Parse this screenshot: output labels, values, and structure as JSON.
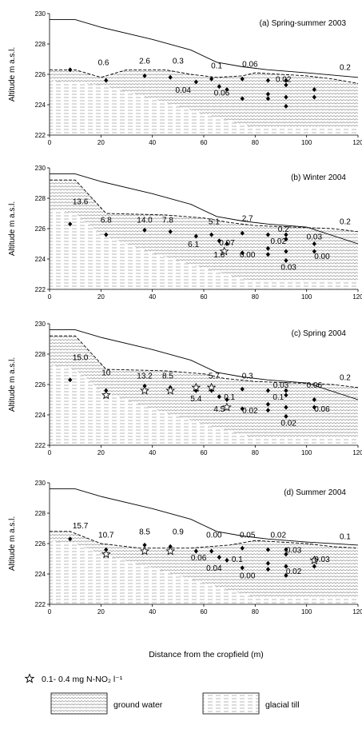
{
  "colors": {
    "line": "#000000",
    "ink": "#000000",
    "gw_stroke": "#8a8a8a",
    "till_stroke": "#9a9a9a"
  },
  "icons": {
    "star": "star-icon",
    "ground_water": "wavy-hatch-swatch",
    "glacial_till": "dashed-hatch-swatch"
  },
  "xaxis_label": "Distance from the cropfield (m)",
  "legend": {
    "star_label": "0.1- 0.4 mg N-NO₂ l⁻¹",
    "ground_water": "ground water",
    "glacial_till": "glacial till"
  },
  "chart_data": [
    {
      "type": "scatter",
      "title": "(a) Spring-summer 2003",
      "ylabel": "Altitude m a.s.l.",
      "xlim": [
        0,
        120
      ],
      "ylim": [
        222,
        230
      ],
      "xticks": [
        "0",
        "20",
        "40",
        "60",
        "80",
        "100",
        "120"
      ],
      "yticks": [
        "222",
        "224",
        "226",
        "228",
        "230"
      ],
      "surface": [
        [
          0,
          229.6
        ],
        [
          10,
          229.6
        ],
        [
          20,
          229.1
        ],
        [
          40,
          228.3
        ],
        [
          55,
          227.6
        ],
        [
          65,
          226.8
        ],
        [
          75,
          226.5
        ],
        [
          85,
          226.3
        ],
        [
          100,
          226.1
        ],
        [
          120,
          225.8
        ]
      ],
      "water_table": [
        [
          0,
          226.3
        ],
        [
          10,
          226.3
        ],
        [
          20,
          225.8
        ],
        [
          30,
          226.3
        ],
        [
          45,
          226.3
        ],
        [
          55,
          226.0
        ],
        [
          65,
          225.8
        ],
        [
          75,
          225.9
        ],
        [
          80,
          226.1
        ],
        [
          90,
          226.0
        ],
        [
          100,
          225.9
        ],
        [
          110,
          225.7
        ],
        [
          120,
          225.4
        ]
      ],
      "till_top": [
        [
          0,
          225.6
        ],
        [
          20,
          225.3
        ],
        [
          40,
          224.4
        ],
        [
          60,
          223.4
        ],
        [
          75,
          222.7
        ],
        [
          80,
          222.5
        ],
        [
          100,
          222.5
        ],
        [
          120,
          222.5
        ]
      ],
      "points": [
        [
          8,
          226.3
        ],
        [
          22,
          225.6
        ],
        [
          37,
          225.9
        ],
        [
          47,
          225.8
        ],
        [
          57,
          225.5
        ],
        [
          63,
          225.7
        ],
        [
          66,
          225.2
        ],
        [
          69,
          225.0
        ],
        [
          75,
          225.7
        ],
        [
          75,
          224.4
        ],
        [
          85,
          225.6
        ],
        [
          85,
          224.7
        ],
        [
          85,
          224.4
        ],
        [
          92,
          225.6
        ],
        [
          92,
          225.3
        ],
        [
          92,
          224.5
        ],
        [
          92,
          223.9
        ],
        [
          103,
          225.0
        ],
        [
          103,
          224.5
        ]
      ],
      "stars": [],
      "labels": [
        {
          "t": "0.6",
          "x": 21,
          "y": 226.6
        },
        {
          "t": "2.6",
          "x": 37,
          "y": 226.7
        },
        {
          "t": "0.3",
          "x": 50,
          "y": 226.7
        },
        {
          "t": "0.1",
          "x": 65,
          "y": 226.4
        },
        {
          "t": "0.06",
          "x": 78,
          "y": 226.5
        },
        {
          "t": "0.2",
          "x": 115,
          "y": 226.3
        },
        {
          "t": "0.04",
          "x": 52,
          "y": 224.8
        },
        {
          "t": "0.06",
          "x": 67,
          "y": 224.6
        },
        {
          "t": "0.02",
          "x": 91,
          "y": 225.5
        }
      ]
    },
    {
      "type": "scatter",
      "title": "(b) Winter 2004",
      "ylabel": "Altitude m a.s.l.",
      "xlim": [
        0,
        120
      ],
      "ylim": [
        222,
        230
      ],
      "xticks": [
        "0",
        "20",
        "40",
        "60",
        "80",
        "100",
        "120"
      ],
      "yticks": [
        "222",
        "224",
        "226",
        "228",
        "230"
      ],
      "surface": [
        [
          0,
          229.6
        ],
        [
          10,
          229.6
        ],
        [
          20,
          229.1
        ],
        [
          40,
          228.3
        ],
        [
          55,
          227.6
        ],
        [
          65,
          226.8
        ],
        [
          75,
          226.5
        ],
        [
          85,
          226.3
        ],
        [
          100,
          226.1
        ],
        [
          120,
          225.0
        ]
      ],
      "water_table": [
        [
          0,
          229.2
        ],
        [
          10,
          229.2
        ],
        [
          22,
          227.0
        ],
        [
          45,
          226.9
        ],
        [
          60,
          226.7
        ],
        [
          70,
          226.4
        ],
        [
          80,
          226.2
        ],
        [
          95,
          226.1
        ],
        [
          110,
          226.0
        ],
        [
          120,
          225.8
        ]
      ],
      "till_top": [
        [
          0,
          227.3
        ],
        [
          10,
          227.0
        ],
        [
          20,
          225.6
        ],
        [
          40,
          224.4
        ],
        [
          60,
          223.4
        ],
        [
          75,
          222.7
        ],
        [
          80,
          222.5
        ],
        [
          100,
          222.5
        ],
        [
          120,
          222.5
        ]
      ],
      "points": [
        [
          8,
          226.3
        ],
        [
          22,
          225.6
        ],
        [
          37,
          225.9
        ],
        [
          47,
          225.8
        ],
        [
          57,
          225.5
        ],
        [
          63,
          225.6
        ],
        [
          66,
          225.2
        ],
        [
          69,
          225.0
        ],
        [
          75,
          225.7
        ],
        [
          75,
          224.4
        ],
        [
          85,
          225.6
        ],
        [
          85,
          224.7
        ],
        [
          85,
          224.3
        ],
        [
          92,
          225.6
        ],
        [
          92,
          225.3
        ],
        [
          92,
          224.5
        ],
        [
          92,
          223.9
        ],
        [
          103,
          225.0
        ],
        [
          103,
          224.5
        ]
      ],
      "stars": [
        [
          68,
          224.5
        ]
      ],
      "labels": [
        {
          "t": "13.6",
          "x": 12,
          "y": 227.6
        },
        {
          "t": "6.8",
          "x": 22,
          "y": 226.4
        },
        {
          "t": "14.0",
          "x": 37,
          "y": 226.4
        },
        {
          "t": "7.8",
          "x": 46,
          "y": 226.4
        },
        {
          "t": "5.1",
          "x": 64,
          "y": 226.3
        },
        {
          "t": "2.7",
          "x": 77,
          "y": 226.5
        },
        {
          "t": "0.2",
          "x": 115,
          "y": 226.3
        },
        {
          "t": "6.1",
          "x": 56,
          "y": 224.8
        },
        {
          "t": "0.07",
          "x": 69,
          "y": 224.9
        },
        {
          "t": "1.6",
          "x": 66,
          "y": 224.1
        },
        {
          "t": "0.00",
          "x": 77,
          "y": 224.1
        },
        {
          "t": "0.2",
          "x": 91,
          "y": 225.8
        },
        {
          "t": "0.02",
          "x": 89,
          "y": 225.0
        },
        {
          "t": "0.03",
          "x": 103,
          "y": 225.3
        },
        {
          "t": "0.03",
          "x": 93,
          "y": 223.3
        },
        {
          "t": "0.00",
          "x": 106,
          "y": 224.0
        }
      ]
    },
    {
      "type": "scatter",
      "title": "(c) Spring 2004",
      "ylabel": "Altitude m a.s.l.",
      "xlim": [
        0,
        120
      ],
      "ylim": [
        222,
        230
      ],
      "xticks": [
        "0",
        "20",
        "40",
        "60",
        "80",
        "100",
        "120"
      ],
      "yticks": [
        "222",
        "224",
        "226",
        "228",
        "230"
      ],
      "surface": [
        [
          0,
          229.6
        ],
        [
          10,
          229.6
        ],
        [
          20,
          229.1
        ],
        [
          40,
          228.3
        ],
        [
          55,
          227.6
        ],
        [
          65,
          226.8
        ],
        [
          75,
          226.5
        ],
        [
          85,
          226.3
        ],
        [
          100,
          226.1
        ],
        [
          120,
          225.0
        ]
      ],
      "water_table": [
        [
          0,
          229.2
        ],
        [
          10,
          229.2
        ],
        [
          22,
          227.0
        ],
        [
          45,
          226.9
        ],
        [
          60,
          226.7
        ],
        [
          68,
          226.4
        ],
        [
          80,
          226.2
        ],
        [
          95,
          226.1
        ],
        [
          110,
          226.0
        ],
        [
          120,
          225.8
        ]
      ],
      "till_top": [
        [
          0,
          227.3
        ],
        [
          10,
          227.0
        ],
        [
          20,
          225.6
        ],
        [
          40,
          224.4
        ],
        [
          60,
          223.4
        ],
        [
          75,
          222.7
        ],
        [
          80,
          222.5
        ],
        [
          100,
          222.5
        ],
        [
          120,
          222.5
        ]
      ],
      "points": [
        [
          8,
          226.3
        ],
        [
          22,
          225.6
        ],
        [
          37,
          225.9
        ],
        [
          47,
          225.8
        ],
        [
          57,
          225.6
        ],
        [
          63,
          225.6
        ],
        [
          66,
          225.2
        ],
        [
          69,
          225.0
        ],
        [
          75,
          225.7
        ],
        [
          75,
          224.4
        ],
        [
          85,
          225.6
        ],
        [
          85,
          224.7
        ],
        [
          85,
          224.3
        ],
        [
          92,
          225.6
        ],
        [
          92,
          225.3
        ],
        [
          92,
          224.5
        ],
        [
          92,
          223.9
        ],
        [
          103,
          225.0
        ],
        [
          103,
          224.5
        ]
      ],
      "stars": [
        [
          22,
          225.3
        ],
        [
          37,
          225.6
        ],
        [
          47,
          225.6
        ],
        [
          57,
          225.8
        ],
        [
          63,
          225.8
        ],
        [
          69,
          224.5
        ]
      ],
      "labels": [
        {
          "t": "15.0",
          "x": 12,
          "y": 227.6
        },
        {
          "t": "10",
          "x": 22,
          "y": 226.6
        },
        {
          "t": "13.2",
          "x": 37,
          "y": 226.4
        },
        {
          "t": "8.5",
          "x": 46,
          "y": 226.4
        },
        {
          "t": "5.7",
          "x": 64,
          "y": 226.4
        },
        {
          "t": "0.3",
          "x": 77,
          "y": 226.4
        },
        {
          "t": "0.2",
          "x": 115,
          "y": 226.3
        },
        {
          "t": "5.4",
          "x": 57,
          "y": 224.9
        },
        {
          "t": "0.1",
          "x": 70,
          "y": 225.0
        },
        {
          "t": "4.5",
          "x": 66,
          "y": 224.2
        },
        {
          "t": "0.02",
          "x": 78,
          "y": 224.1
        },
        {
          "t": "0.03",
          "x": 90,
          "y": 225.8
        },
        {
          "t": "0.1",
          "x": 89,
          "y": 225.0
        },
        {
          "t": "0.06",
          "x": 103,
          "y": 225.8
        },
        {
          "t": "0.02",
          "x": 93,
          "y": 223.3
        },
        {
          "t": "0.06",
          "x": 106,
          "y": 224.2
        }
      ]
    },
    {
      "type": "scatter",
      "title": "(d) Summer 2004",
      "ylabel": "Altitude m a.s.l.",
      "xlim": [
        0,
        120
      ],
      "ylim": [
        222,
        230
      ],
      "xticks": [
        "0",
        "20",
        "40",
        "60",
        "80",
        "100",
        "120"
      ],
      "yticks": [
        "222",
        "224",
        "226",
        "228",
        "230"
      ],
      "surface": [
        [
          0,
          229.6
        ],
        [
          10,
          229.6
        ],
        [
          20,
          229.1
        ],
        [
          40,
          228.3
        ],
        [
          55,
          227.6
        ],
        [
          65,
          226.8
        ],
        [
          75,
          226.5
        ],
        [
          85,
          226.3
        ],
        [
          100,
          226.1
        ],
        [
          120,
          225.9
        ]
      ],
      "water_table": [
        [
          0,
          226.8
        ],
        [
          8,
          226.8
        ],
        [
          20,
          226.0
        ],
        [
          35,
          225.7
        ],
        [
          55,
          225.7
        ],
        [
          62,
          225.8
        ],
        [
          70,
          225.9
        ],
        [
          80,
          226.2
        ],
        [
          90,
          226.1
        ],
        [
          100,
          226.0
        ],
        [
          110,
          225.8
        ],
        [
          120,
          225.7
        ]
      ],
      "till_top": [
        [
          0,
          226.2
        ],
        [
          10,
          226.0
        ],
        [
          20,
          225.3
        ],
        [
          40,
          224.4
        ],
        [
          60,
          223.4
        ],
        [
          75,
          222.7
        ],
        [
          80,
          222.5
        ],
        [
          100,
          222.5
        ],
        [
          120,
          222.5
        ]
      ],
      "points": [
        [
          8,
          226.3
        ],
        [
          22,
          225.6
        ],
        [
          37,
          225.9
        ],
        [
          47,
          225.8
        ],
        [
          57,
          225.5
        ],
        [
          63,
          225.5
        ],
        [
          66,
          225.1
        ],
        [
          69,
          224.9
        ],
        [
          75,
          225.7
        ],
        [
          75,
          224.4
        ],
        [
          85,
          225.6
        ],
        [
          85,
          224.7
        ],
        [
          85,
          224.3
        ],
        [
          92,
          225.6
        ],
        [
          92,
          225.3
        ],
        [
          92,
          224.5
        ],
        [
          92,
          223.9
        ],
        [
          103,
          225.0
        ],
        [
          103,
          224.5
        ]
      ],
      "stars": [
        [
          22,
          225.3
        ],
        [
          37,
          225.5
        ],
        [
          47,
          225.5
        ],
        [
          103,
          224.9
        ]
      ],
      "labels": [
        {
          "t": "15.7",
          "x": 12,
          "y": 227.0
        },
        {
          "t": "10.7",
          "x": 22,
          "y": 226.4
        },
        {
          "t": "8.5",
          "x": 37,
          "y": 226.6
        },
        {
          "t": "0.9",
          "x": 50,
          "y": 226.6
        },
        {
          "t": "0.00",
          "x": 64,
          "y": 226.4
        },
        {
          "t": "0.05",
          "x": 77,
          "y": 226.4
        },
        {
          "t": "0.02",
          "x": 89,
          "y": 226.4
        },
        {
          "t": "0.1",
          "x": 115,
          "y": 226.3
        },
        {
          "t": "0.06",
          "x": 58,
          "y": 224.9
        },
        {
          "t": "0.04",
          "x": 64,
          "y": 224.2
        },
        {
          "t": "0.1",
          "x": 73,
          "y": 224.8
        },
        {
          "t": "0.00",
          "x": 77,
          "y": 223.7
        },
        {
          "t": "0.03",
          "x": 95,
          "y": 225.4
        },
        {
          "t": "0.02",
          "x": 95,
          "y": 224.0
        },
        {
          "t": "0.03",
          "x": 106,
          "y": 224.8
        }
      ]
    }
  ]
}
